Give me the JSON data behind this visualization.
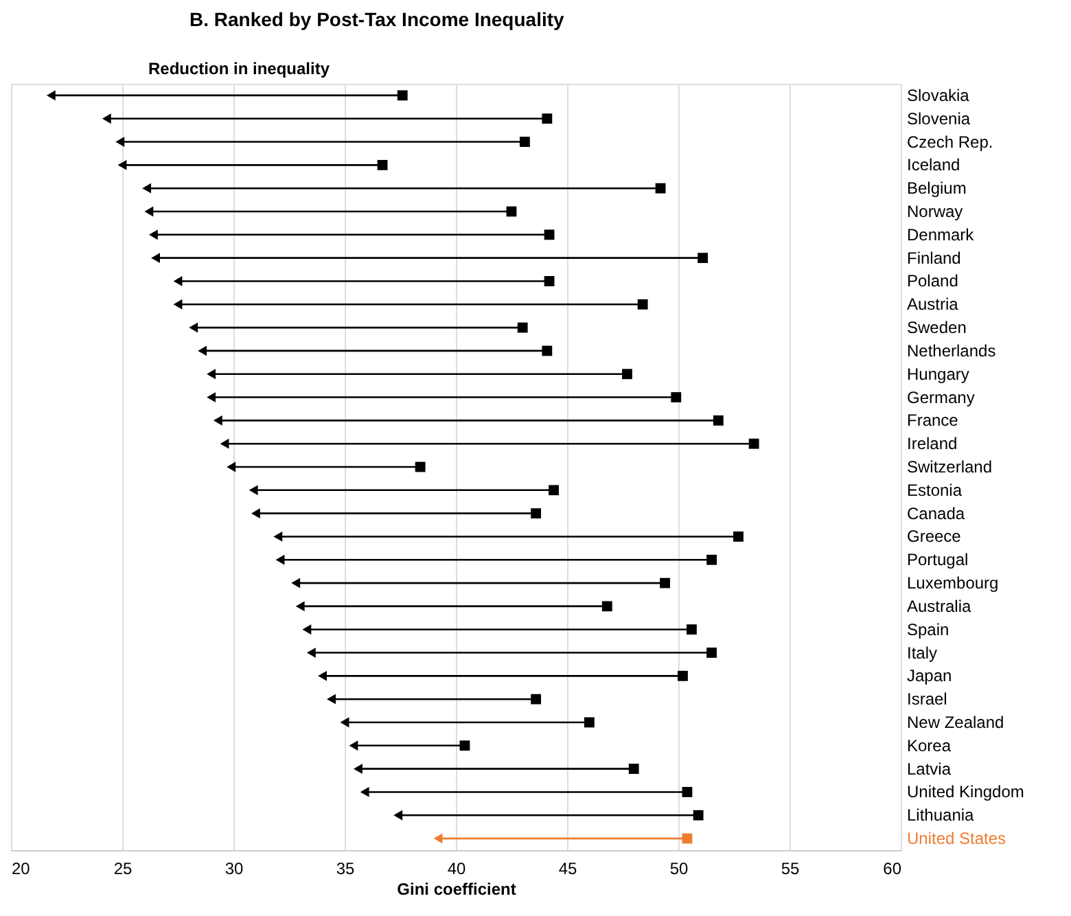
{
  "chart_data": {
    "type": "scatter",
    "title": "B. Ranked by Post-Tax Income Inequality",
    "xlabel": "Gini coefficient",
    "orientation": "horizontal",
    "annotations": [
      "Reduction in inequality"
    ],
    "categories": [
      "Slovakia",
      "Slovenia",
      "Czech Rep.",
      "Iceland",
      "Belgium",
      "Norway",
      "Denmark",
      "Finland",
      "Poland",
      "Austria",
      "Sweden",
      "Netherlands",
      "Hungary",
      "Germany",
      "France",
      "Ireland",
      "Switzerland",
      "Estonia",
      "Canada",
      "Greece",
      "Portugal",
      "Luxembourg",
      "Australia",
      "Spain",
      "Italy",
      "Japan",
      "Israel",
      "New Zealand",
      "Korea",
      "Latvia",
      "United Kingdom",
      "Lithuania",
      "United States"
    ],
    "series": [
      {
        "marker": "square",
        "colors": [
          "#000000",
          "#000000",
          "#000000",
          "#000000",
          "#000000",
          "#000000",
          "#000000",
          "#000000",
          "#000000",
          "#000000",
          "#000000",
          "#000000",
          "#000000",
          "#000000",
          "#000000",
          "#000000",
          "#000000",
          "#000000",
          "#000000",
          "#000000",
          "#000000",
          "#000000",
          "#000000",
          "#000000",
          "#000000",
          "#000000",
          "#000000",
          "#000000",
          "#000000",
          "#000000",
          "#000000",
          "#000000",
          "#ee7d31"
        ],
        "values": [
          37.6,
          44.1,
          43.1,
          36.7,
          49.2,
          42.5,
          44.2,
          51.1,
          44.2,
          48.4,
          43.0,
          44.1,
          47.7,
          49.9,
          51.8,
          53.4,
          38.4,
          44.4,
          43.6,
          52.7,
          51.5,
          49.4,
          46.8,
          50.6,
          51.5,
          50.2,
          43.6,
          46.0,
          40.4,
          48.0,
          50.4,
          50.9,
          50.4
        ]
      },
      {
        "marker": "triangle",
        "colors": [
          "#000000",
          "#000000",
          "#000000",
          "#000000",
          "#000000",
          "#000000",
          "#000000",
          "#000000",
          "#000000",
          "#000000",
          "#000000",
          "#000000",
          "#000000",
          "#000000",
          "#000000",
          "#000000",
          "#000000",
          "#000000",
          "#000000",
          "#000000",
          "#000000",
          "#000000",
          "#000000",
          "#000000",
          "#000000",
          "#000000",
          "#000000",
          "#000000",
          "#000000",
          "#000000",
          "#000000",
          "#000000",
          "#ee7d31"
        ],
        "values": [
          21.8,
          24.3,
          24.9,
          25.0,
          26.1,
          26.2,
          26.4,
          26.5,
          27.5,
          27.5,
          28.2,
          28.6,
          29.0,
          29.0,
          29.3,
          29.6,
          29.9,
          30.9,
          31.0,
          32.0,
          32.1,
          32.8,
          33.0,
          33.3,
          33.5,
          34.0,
          34.4,
          35.0,
          35.4,
          35.6,
          35.9,
          37.4,
          39.2
        ]
      }
    ],
    "xlim": [
      20,
      60
    ],
    "xticks": [
      20,
      25,
      30,
      35,
      40,
      45,
      50,
      55,
      60
    ],
    "grid": "x"
  }
}
